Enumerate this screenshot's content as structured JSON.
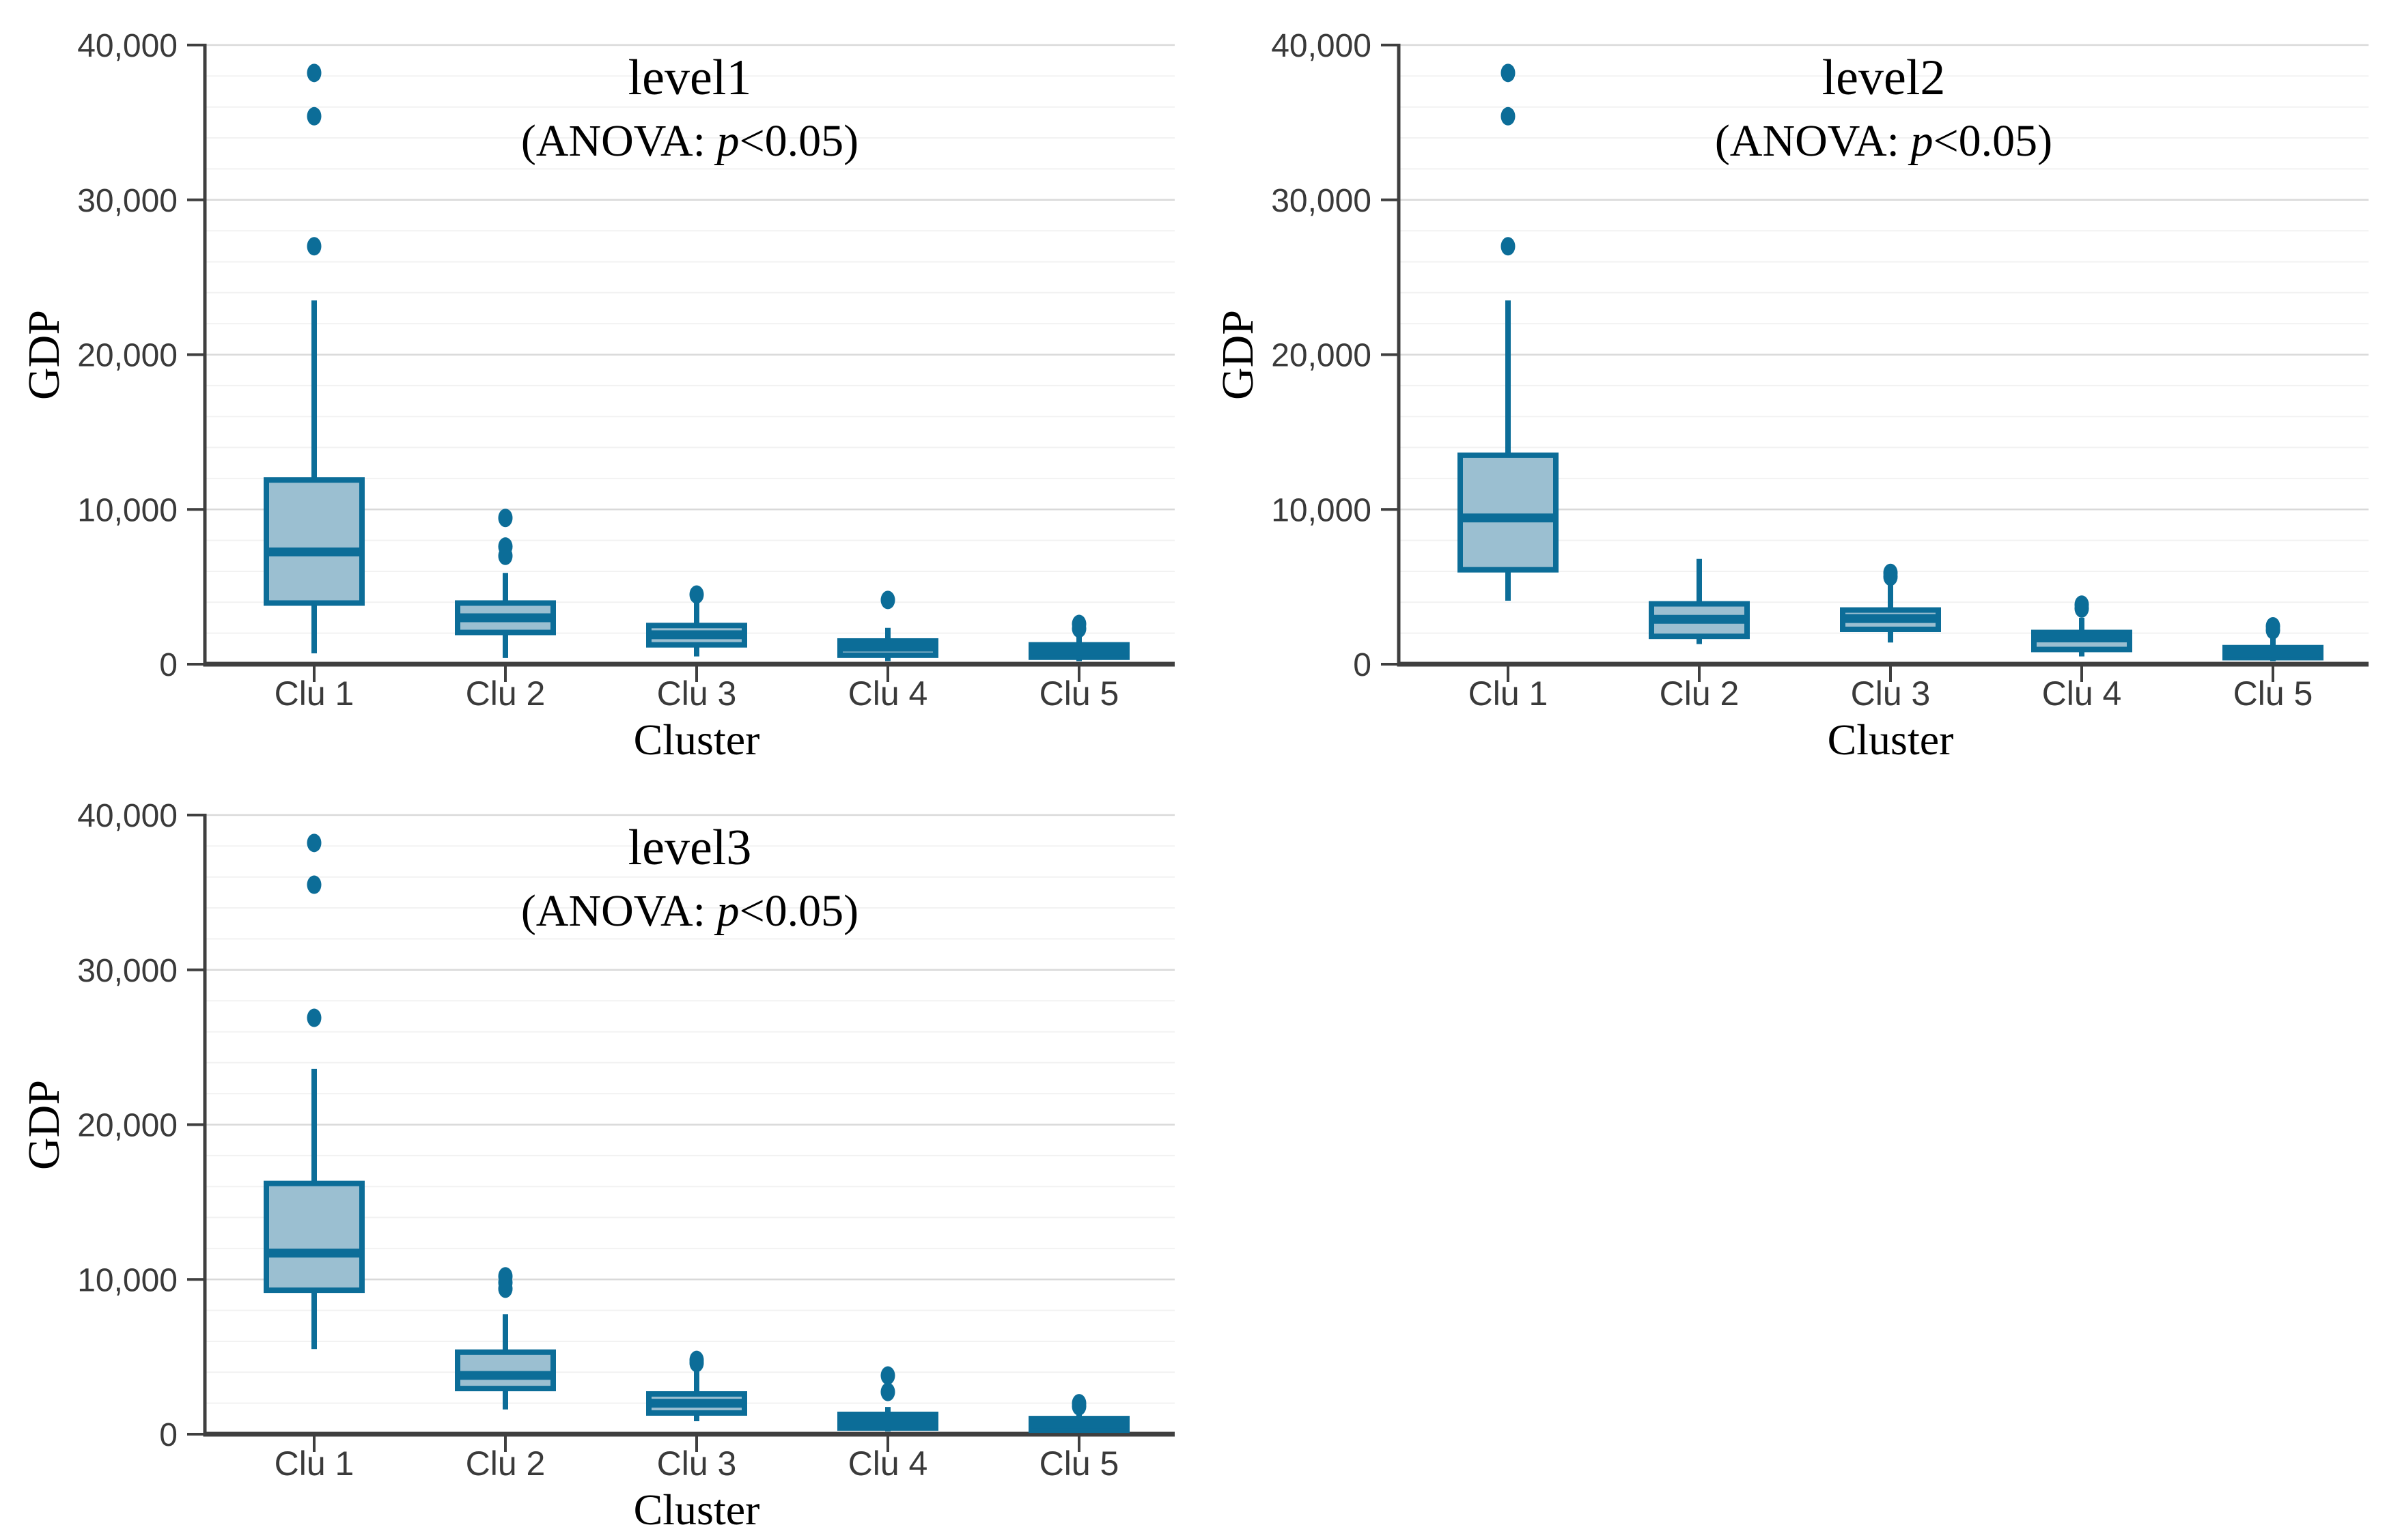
{
  "figure": {
    "background": "#ffffff",
    "empty_quadrant": "bottom-right"
  },
  "colors": {
    "box_fill": "#9bbfd1",
    "box_stroke": "#0c6d98",
    "median_line": "#0c6d98",
    "whisker": "#0c6d98",
    "outlier": "#0c6d98",
    "grid_major": "#d9d9d9",
    "grid_minor": "#f2f2f2",
    "axis_line": "#3f3f3f",
    "tick_text": "#3a3a3a",
    "title_text": "#000000"
  },
  "chart_data": [
    {
      "type": "boxplot",
      "id": "level1",
      "title": "level1",
      "subtitle": {
        "prefix": "(ANOVA: ",
        "italic": "p",
        "suffix": "<0.05)"
      },
      "xlabel": "Cluster",
      "ylabel": "GDP",
      "ylim": [
        0,
        40000
      ],
      "grid": {
        "major_step": 10000,
        "minor_step": 2000,
        "orientation": "horizontal"
      },
      "legend": null,
      "yticks": [
        {
          "value": 0,
          "label": "0"
        },
        {
          "value": 10000,
          "label": "10,000"
        },
        {
          "value": 20000,
          "label": "20,000"
        },
        {
          "value": 30000,
          "label": "30,000"
        },
        {
          "value": 40000,
          "label": "40,000"
        }
      ],
      "categories": [
        "Clu 1",
        "Clu 2",
        "Clu 3",
        "Clu 4",
        "Clu 5"
      ],
      "boxes": [
        {
          "category": "Clu 1",
          "whisker_low": 700,
          "q1": 3950,
          "median": 7250,
          "q3": 11900,
          "whisker_high": 23500,
          "outliers": [
            27000,
            35400,
            38200
          ]
        },
        {
          "category": "Clu 2",
          "whisker_low": 400,
          "q1": 2050,
          "median": 3000,
          "q3": 3950,
          "whisker_high": 5900,
          "outliers": [
            7000,
            7600,
            9450
          ]
        },
        {
          "category": "Clu 3",
          "whisker_low": 500,
          "q1": 1250,
          "median": 1900,
          "q3": 2500,
          "whisker_high": 4150,
          "outliers": [
            4500
          ]
        },
        {
          "category": "Clu 4",
          "whisker_low": 200,
          "q1": 580,
          "median": 1100,
          "q3": 1500,
          "whisker_high": 2350,
          "outliers": [
            4150
          ]
        },
        {
          "category": "Clu 5",
          "whisker_low": 200,
          "q1": 450,
          "median": 850,
          "q3": 1250,
          "whisker_high": 1800,
          "outliers": [
            2300,
            2600
          ]
        }
      ]
    },
    {
      "type": "boxplot",
      "id": "level2",
      "title": "level2",
      "subtitle": {
        "prefix": "(ANOVA: ",
        "italic": "p",
        "suffix": "<0.05)"
      },
      "xlabel": "Cluster",
      "ylabel": "GDP",
      "ylim": [
        0,
        40000
      ],
      "grid": {
        "major_step": 10000,
        "minor_step": 2000,
        "orientation": "horizontal"
      },
      "legend": null,
      "yticks": [
        {
          "value": 0,
          "label": "0"
        },
        {
          "value": 10000,
          "label": "10,000"
        },
        {
          "value": 20000,
          "label": "20,000"
        },
        {
          "value": 30000,
          "label": "30,000"
        },
        {
          "value": 40000,
          "label": "40,000"
        }
      ],
      "categories": [
        "Clu 1",
        "Clu 2",
        "Clu 3",
        "Clu 4",
        "Clu 5"
      ],
      "boxes": [
        {
          "category": "Clu 1",
          "whisker_low": 4100,
          "q1": 6100,
          "median": 9450,
          "q3": 13500,
          "whisker_high": 23500,
          "outliers": [
            27000,
            35400,
            38200
          ]
        },
        {
          "category": "Clu 2",
          "whisker_low": 1300,
          "q1": 1800,
          "median": 2900,
          "q3": 3900,
          "whisker_high": 6800,
          "outliers": []
        },
        {
          "category": "Clu 3",
          "whisker_low": 1400,
          "q1": 2250,
          "median": 2950,
          "q3": 3500,
          "whisker_high": 5100,
          "outliers": [
            5650,
            5900
          ]
        },
        {
          "category": "Clu 4",
          "whisker_low": 500,
          "q1": 950,
          "median": 1700,
          "q3": 2050,
          "whisker_high": 3000,
          "outliers": [
            3600,
            3850
          ]
        },
        {
          "category": "Clu 5",
          "whisker_low": 200,
          "q1": 420,
          "median": 700,
          "q3": 1070,
          "whisker_high": 1800,
          "outliers": [
            2200,
            2450
          ]
        }
      ]
    },
    {
      "type": "boxplot",
      "id": "level3",
      "title": "level3",
      "subtitle": {
        "prefix": "(ANOVA: ",
        "italic": "p",
        "suffix": "<0.05)"
      },
      "xlabel": "Cluster",
      "ylabel": "GDP",
      "ylim": [
        0,
        40000
      ],
      "grid": {
        "major_step": 10000,
        "minor_step": 2000,
        "orientation": "horizontal"
      },
      "legend": null,
      "yticks": [
        {
          "value": 0,
          "label": "0"
        },
        {
          "value": 10000,
          "label": "10,000"
        },
        {
          "value": 20000,
          "label": "20,000"
        },
        {
          "value": 30000,
          "label": "30,000"
        },
        {
          "value": 40000,
          "label": "40,000"
        }
      ],
      "categories": [
        "Clu 1",
        "Clu 2",
        "Clu 3",
        "Clu 4",
        "Clu 5"
      ],
      "boxes": [
        {
          "category": "Clu 1",
          "whisker_low": 5500,
          "q1": 9300,
          "median": 11700,
          "q3": 16200,
          "whisker_high": 23600,
          "outliers": [
            26900,
            35500,
            38200
          ]
        },
        {
          "category": "Clu 2",
          "whisker_low": 1600,
          "q1": 2950,
          "median": 3800,
          "q3": 5300,
          "whisker_high": 7750,
          "outliers": [
            9400,
            9800,
            10200
          ]
        },
        {
          "category": "Clu 3",
          "whisker_low": 840,
          "q1": 1370,
          "median": 2000,
          "q3": 2600,
          "whisker_high": 4250,
          "outliers": [
            4600,
            4800
          ]
        },
        {
          "category": "Clu 4",
          "whisker_low": 180,
          "q1": 400,
          "median": 840,
          "q3": 1280,
          "whisker_high": 1760,
          "outliers": [
            2730,
            3790
          ]
        },
        {
          "category": "Clu 5",
          "whisker_low": 150,
          "q1": 260,
          "median": 650,
          "q3": 1010,
          "whisker_high": 1400,
          "outliers": [
            1800,
            2000
          ]
        }
      ]
    }
  ]
}
